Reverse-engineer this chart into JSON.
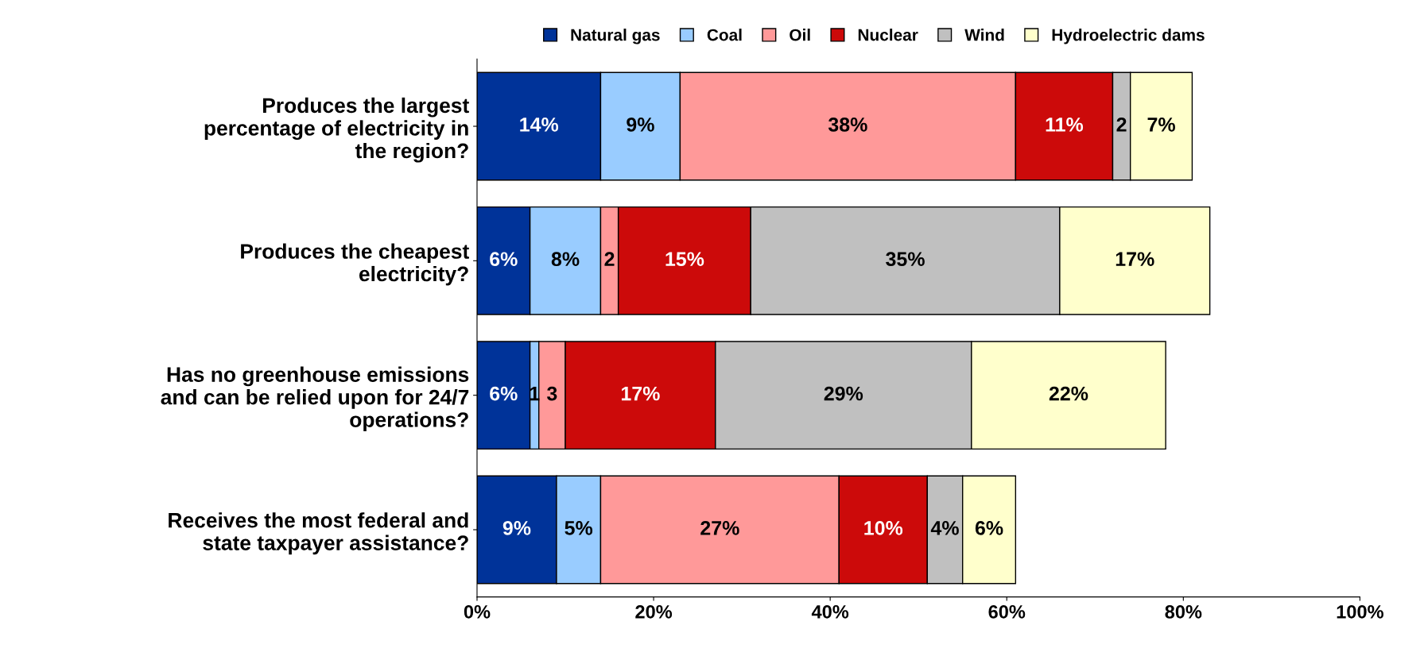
{
  "chart_data": {
    "type": "bar",
    "orientation": "horizontal",
    "stacked": true,
    "legend": "top",
    "grid": false,
    "categories": [
      "Produces the largest\npercentage of electricity in\nthe region?",
      "Produces the cheapest\nelectricity?",
      "Has no greenhouse emissions\nand can be relied upon for 24/7\noperations?",
      "Receives the most federal and\nstate taxpayer assistance?"
    ],
    "series": [
      {
        "name": "Natural gas",
        "color": "#003399",
        "values": [
          14,
          6,
          6,
          9
        ],
        "value_labels": [
          "14%",
          "6%",
          "6%",
          "9%"
        ]
      },
      {
        "name": "Coal",
        "color": "#99ccff",
        "values": [
          9,
          8,
          1,
          5
        ],
        "value_labels": [
          "9%",
          "8%",
          "1",
          "5%"
        ]
      },
      {
        "name": "Oil",
        "color": "#ff9999",
        "values": [
          38,
          2,
          3,
          27
        ],
        "value_labels": [
          "38%",
          "2",
          "3",
          "27%"
        ]
      },
      {
        "name": "Nuclear",
        "color": "#cc0a0a",
        "values": [
          11,
          15,
          17,
          10
        ],
        "value_labels": [
          "11%",
          "15%",
          "17%",
          "10%"
        ]
      },
      {
        "name": "Wind",
        "color": "#c0c0c0",
        "values": [
          2,
          35,
          29,
          4
        ],
        "value_labels": [
          "2",
          "35%",
          "29%",
          "4%"
        ]
      },
      {
        "name": "Hydroelectric dams",
        "color": "#ffffcc",
        "values": [
          7,
          17,
          22,
          6
        ],
        "value_labels": [
          "7%",
          "17%",
          "22%",
          "6%"
        ]
      }
    ],
    "xlim": [
      0,
      100
    ],
    "xticks": [
      {
        "value": 0,
        "label": "0%"
      },
      {
        "value": 20,
        "label": "20%"
      },
      {
        "value": 40,
        "label": "40%"
      },
      {
        "value": 60,
        "label": "60%"
      },
      {
        "value": 80,
        "label": "80%"
      },
      {
        "value": 100,
        "label": "100%"
      }
    ]
  }
}
